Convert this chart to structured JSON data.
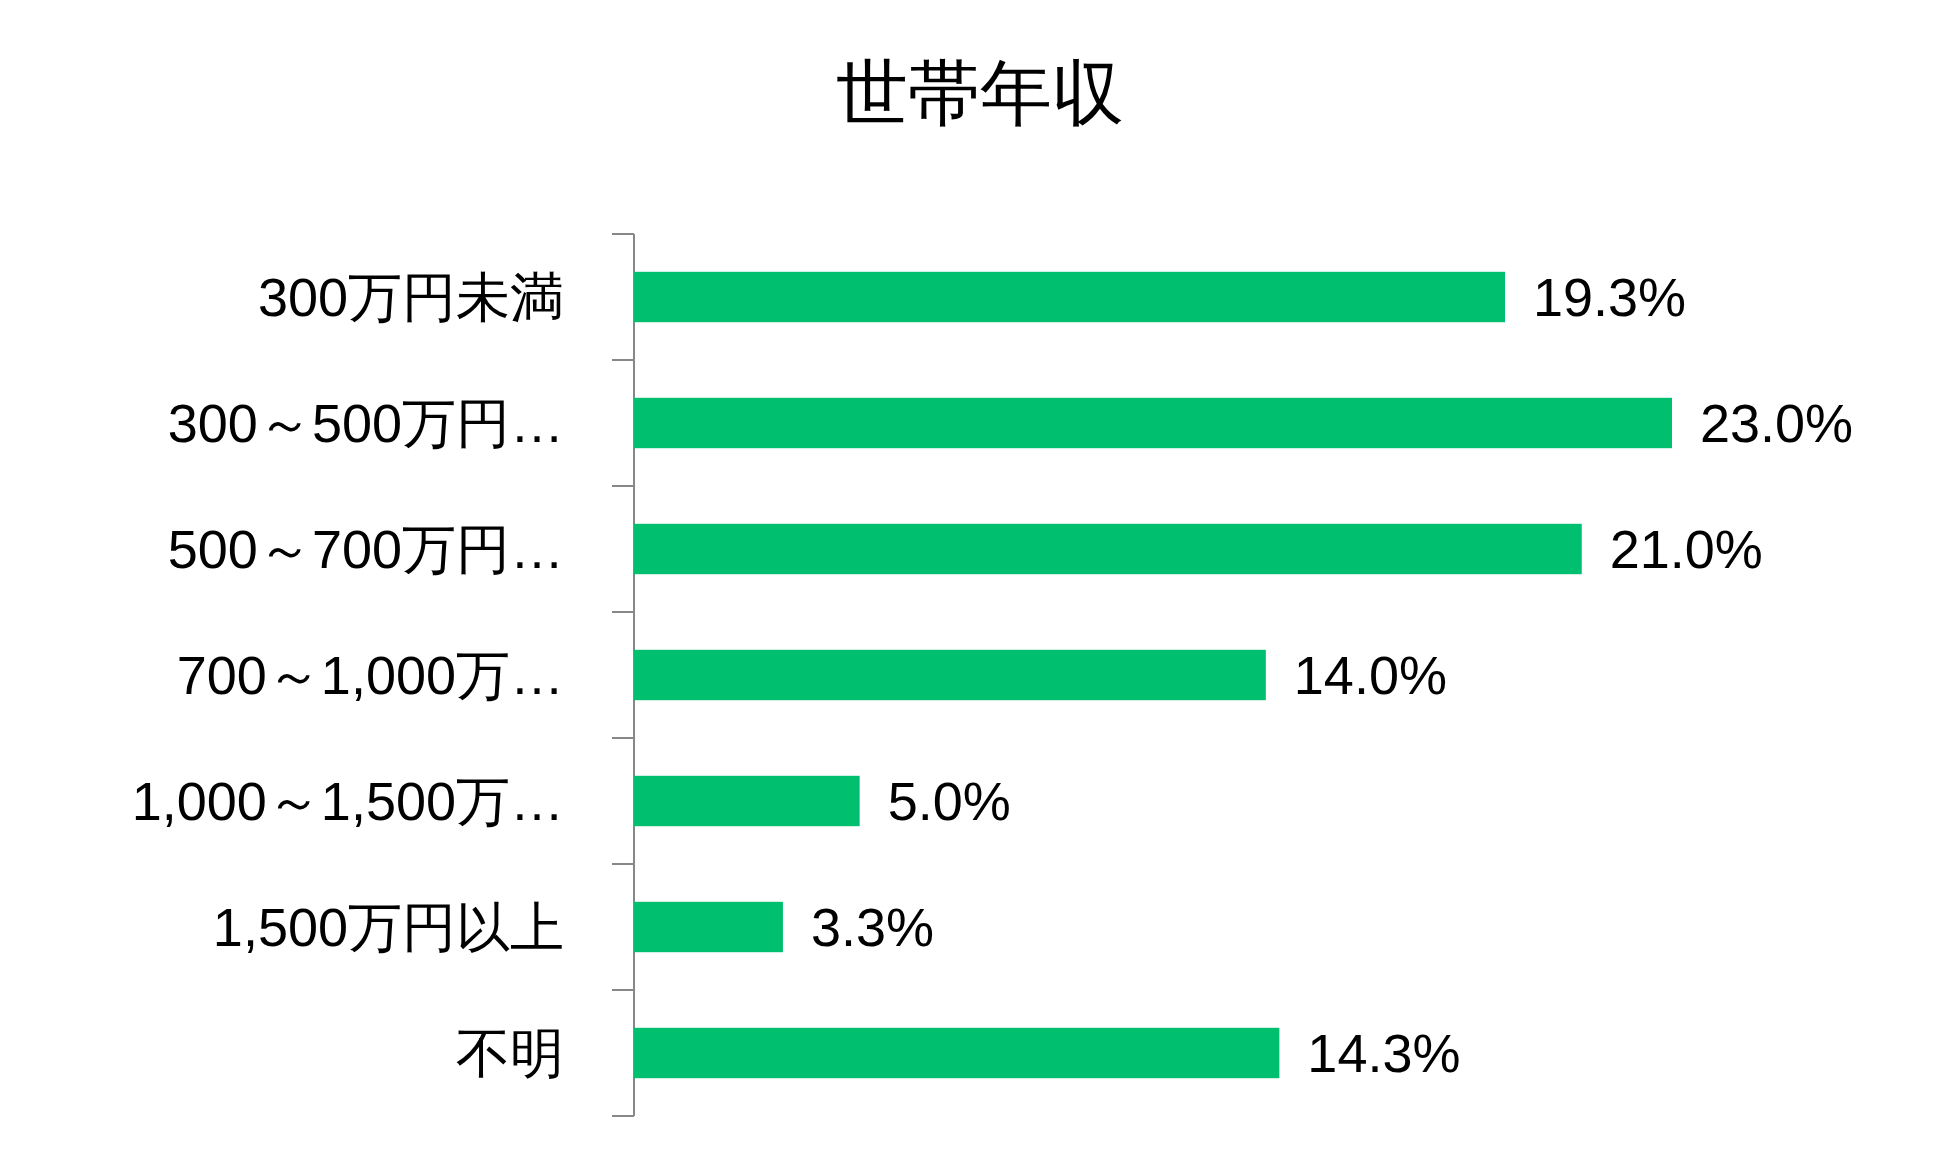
{
  "chart_data": {
    "type": "bar",
    "orientation": "horizontal",
    "title": "世帯年収",
    "categories": [
      "300万円未満",
      "300～500万円…",
      "500～700万円…",
      "700～1,000万…",
      "1,000～1,500万…",
      "1,500万円以上",
      "不明"
    ],
    "values": [
      19.3,
      23.0,
      21.0,
      14.0,
      5.0,
      3.3,
      14.3
    ],
    "value_labels": [
      "19.3%",
      "23.0%",
      "21.0%",
      "14.0%",
      "5.0%",
      "3.3%",
      "14.3%"
    ],
    "color": "#00bf6f",
    "tick_labels": "y"
  }
}
